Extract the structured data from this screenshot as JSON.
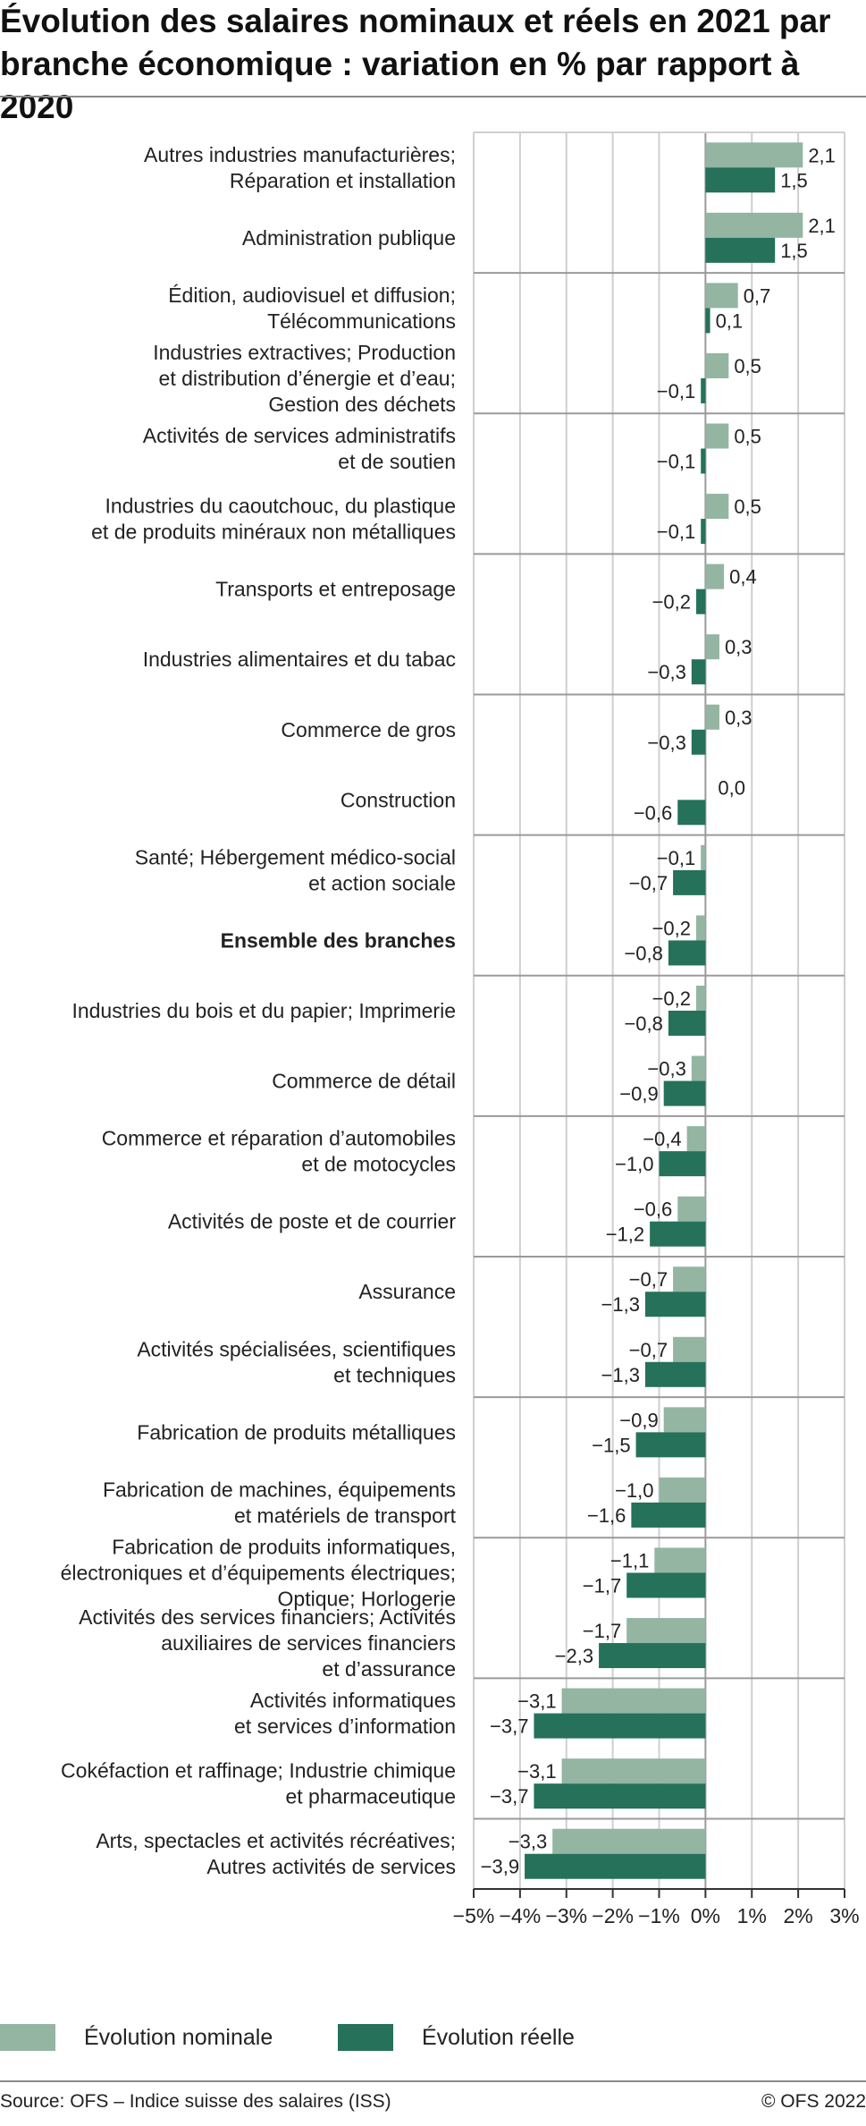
{
  "title": "Évolution des salaires nominaux et réels en 2021 par branche économique : variation en % par rapport à 2020",
  "source": "Source: OFS – Indice suisse des salaires (ISS)",
  "copyright": "© OFS 2022",
  "colors": {
    "nominal": "#93b5a2",
    "real": "#25715a",
    "grid": "#cfcfcf",
    "axis": "#333333"
  },
  "chart_data": {
    "type": "bar",
    "orientation": "horizontal",
    "xlim": [
      -5,
      3
    ],
    "xticks": [
      "−5%",
      "−4%",
      "−3%",
      "−2%",
      "−1%",
      "0%",
      "1%",
      "2%",
      "3%"
    ],
    "grid": true,
    "legend_position": "bottom-left",
    "categories": [
      {
        "lines": [
          "Autres industries manufacturières;",
          "Réparation et installation"
        ],
        "bold": false
      },
      {
        "lines": [
          "Administration publique"
        ],
        "bold": false
      },
      {
        "lines": [
          "Édition, audiovisuel et diffusion;",
          "Télécommunications"
        ],
        "bold": false
      },
      {
        "lines": [
          "Industries extractives; Production",
          "et distribution d’énergie et d’eau;",
          "Gestion des déchets"
        ],
        "bold": false
      },
      {
        "lines": [
          "Activités de services administratifs",
          "et de soutien"
        ],
        "bold": false
      },
      {
        "lines": [
          "Industries du caoutchouc, du plastique",
          "et de produits minéraux non métalliques"
        ],
        "bold": false
      },
      {
        "lines": [
          "Transports et entreposage"
        ],
        "bold": false
      },
      {
        "lines": [
          "Industries alimentaires et du tabac"
        ],
        "bold": false
      },
      {
        "lines": [
          "Commerce de gros"
        ],
        "bold": false
      },
      {
        "lines": [
          "Construction"
        ],
        "bold": false
      },
      {
        "lines": [
          "Santé; Hébergement médico-social",
          "et action sociale"
        ],
        "bold": false
      },
      {
        "lines": [
          "Ensemble des branches"
        ],
        "bold": true
      },
      {
        "lines": [
          "Industries du bois et du papier; Imprimerie"
        ],
        "bold": false
      },
      {
        "lines": [
          "Commerce de détail"
        ],
        "bold": false
      },
      {
        "lines": [
          "Commerce et réparation d’automobiles",
          "et de motocycles"
        ],
        "bold": false
      },
      {
        "lines": [
          "Activités de poste et de courrier"
        ],
        "bold": false
      },
      {
        "lines": [
          "Assurance"
        ],
        "bold": false
      },
      {
        "lines": [
          "Activités spécialisées, scientifiques",
          "et techniques"
        ],
        "bold": false
      },
      {
        "lines": [
          "Fabrication de produits métalliques"
        ],
        "bold": false
      },
      {
        "lines": [
          "Fabrication de machines, équipements",
          "et matériels de transport"
        ],
        "bold": false
      },
      {
        "lines": [
          "Fabrication de produits informatiques,",
          "électroniques et d’équipements électriques;",
          "Optique; Horlogerie"
        ],
        "bold": false
      },
      {
        "lines": [
          "Activités des services financiers; Activités",
          "auxiliaires de services financiers",
          "et d’assurance"
        ],
        "bold": false
      },
      {
        "lines": [
          "Activités informatiques",
          "et services d’information"
        ],
        "bold": false
      },
      {
        "lines": [
          "Cokéfaction et raffinage; Industrie chimique",
          "et pharmaceutique"
        ],
        "bold": false
      },
      {
        "lines": [
          "Arts, spectacles et activités récréatives;",
          "Autres activités de services"
        ],
        "bold": false
      }
    ],
    "series": [
      {
        "name": "Évolution nominale",
        "values": [
          2.1,
          2.1,
          0.7,
          0.5,
          0.5,
          0.5,
          0.4,
          0.3,
          0.3,
          0.0,
          -0.1,
          -0.2,
          -0.2,
          -0.3,
          -0.4,
          -0.6,
          -0.7,
          -0.7,
          -0.9,
          -1.0,
          -1.1,
          -1.7,
          -3.1,
          -3.1,
          -3.3
        ],
        "labels": [
          "2,1",
          "2,1",
          "0,7",
          "0,5",
          "0,5",
          "0,5",
          "0,4",
          "0,3",
          "0,3",
          "0,0",
          "−0,1",
          "−0,2",
          "−0,2",
          "−0,3",
          "−0,4",
          "−0,6",
          "−0,7",
          "−0,7",
          "−0,9",
          "−1,0",
          "−1,1",
          "−1,7",
          "−3,1",
          "−3,1",
          "−3,3"
        ]
      },
      {
        "name": "Évolution réelle",
        "values": [
          1.5,
          1.5,
          0.1,
          -0.1,
          -0.1,
          -0.1,
          -0.2,
          -0.3,
          -0.3,
          -0.6,
          -0.7,
          -0.8,
          -0.8,
          -0.9,
          -1.0,
          -1.2,
          -1.3,
          -1.3,
          -1.5,
          -1.6,
          -1.7,
          -2.3,
          -3.7,
          -3.7,
          -3.9
        ],
        "labels": [
          "1,5",
          "1,5",
          "0,1",
          "−0,1",
          "−0,1",
          "−0,1",
          "−0,2",
          "−0,3",
          "−0,3",
          "−0,6",
          "−0,7",
          "−0,8",
          "−0,8",
          "−0,9",
          "−1,0",
          "−1,2",
          "−1,3",
          "−1,3",
          "−1,5",
          "−1,6",
          "−1,7",
          "−2,3",
          "−3,7",
          "−3,7",
          "−3,9"
        ]
      }
    ]
  }
}
